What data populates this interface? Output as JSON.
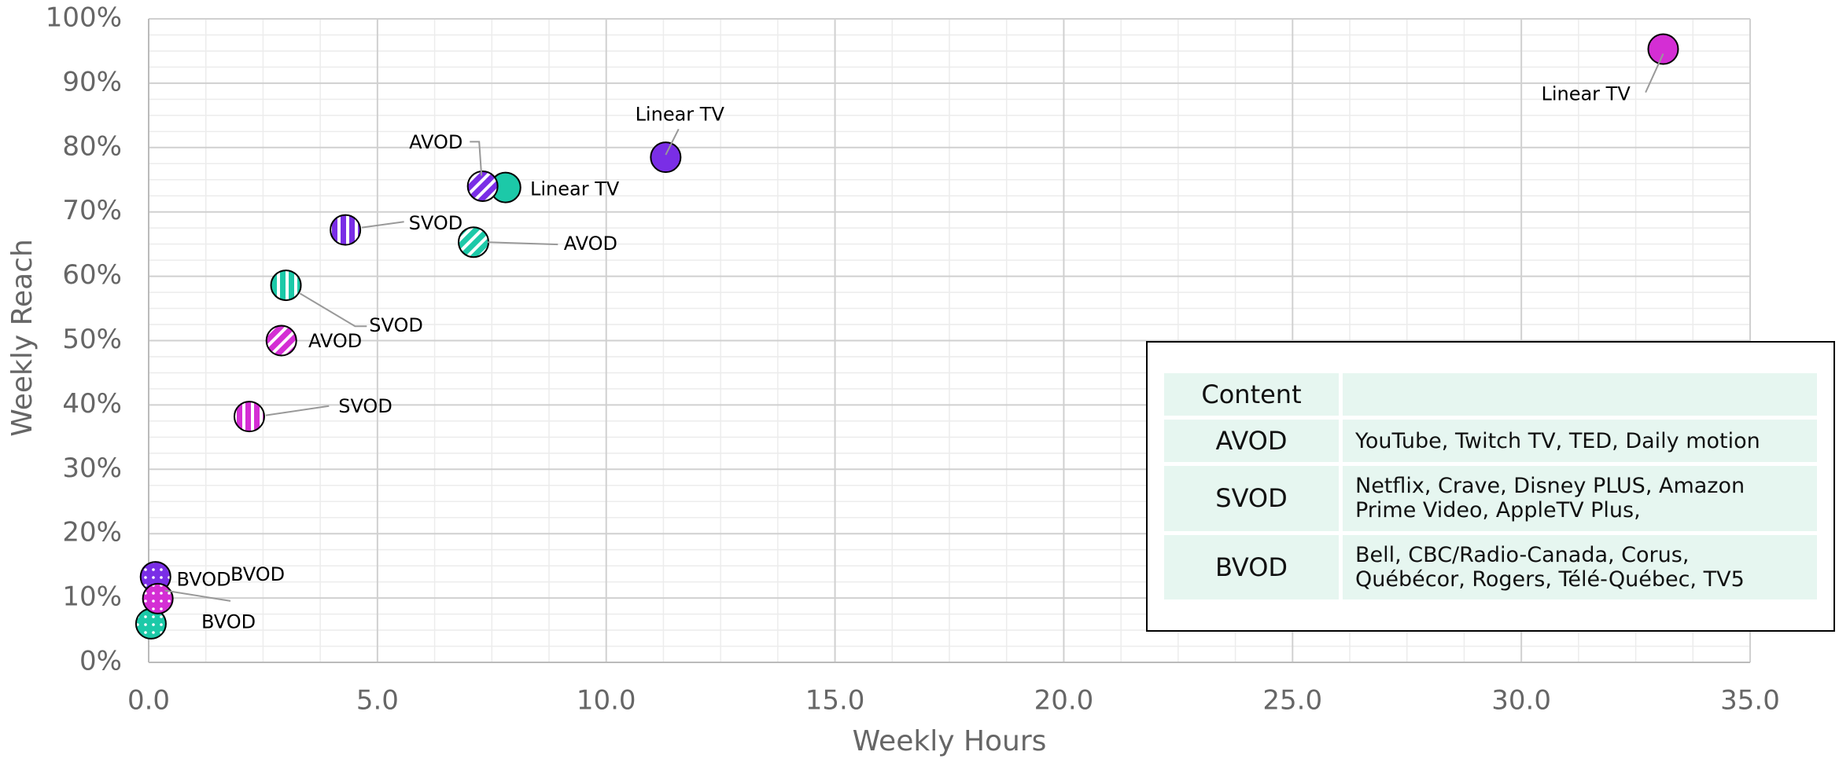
{
  "chart_data": {
    "type": "scatter",
    "xlabel": "Weekly Hours",
    "ylabel": "Weekly Reach",
    "xlim": [
      0,
      35
    ],
    "ylim": [
      0,
      100
    ],
    "xticks": [
      {
        "value": 0,
        "label": "0.0"
      },
      {
        "value": 5,
        "label": "5.0"
      },
      {
        "value": 10,
        "label": "10.0"
      },
      {
        "value": 15,
        "label": "15.0"
      },
      {
        "value": 20,
        "label": "20.0"
      },
      {
        "value": 25,
        "label": "25.0"
      },
      {
        "value": 30,
        "label": "30.0"
      },
      {
        "value": 35,
        "label": "35.0"
      }
    ],
    "yticks": [
      {
        "value": 0,
        "label": "0%"
      },
      {
        "value": 10,
        "label": "10%"
      },
      {
        "value": 20,
        "label": "20%"
      },
      {
        "value": 30,
        "label": "30%"
      },
      {
        "value": 40,
        "label": "40%"
      },
      {
        "value": 50,
        "label": "50%"
      },
      {
        "value": 60,
        "label": "60%"
      },
      {
        "value": 70,
        "label": "70%"
      },
      {
        "value": 80,
        "label": "80%"
      },
      {
        "value": 90,
        "label": "90%"
      },
      {
        "value": 100,
        "label": "100%"
      }
    ],
    "grid": true,
    "minor_divisions": 4,
    "series": [
      {
        "name": "Linear TV",
        "pattern": "solid",
        "x": [
          11.3,
          7.8,
          33.1
        ],
        "values": [
          78.5,
          73.8,
          95.3
        ],
        "colors": [
          "#7a2ee6",
          "#1cc9a8",
          "#d42ed4"
        ]
      },
      {
        "name": "AVOD",
        "pattern": "diagonal",
        "x": [
          7.3,
          7.1,
          2.9
        ],
        "values": [
          74,
          65.3,
          50
        ],
        "colors": [
          "#7a2ee6",
          "#1cc9a8",
          "#d42ed4"
        ]
      },
      {
        "name": "SVOD",
        "pattern": "vertical",
        "x": [
          4.3,
          3.0,
          2.2
        ],
        "values": [
          67.2,
          58.6,
          38.2
        ],
        "colors": [
          "#7a2ee6",
          "#1cc9a8",
          "#d42ed4"
        ]
      },
      {
        "name": "BVOD",
        "pattern": "dots",
        "x": [
          0.15,
          0.05,
          0.2
        ],
        "values": [
          13.3,
          6,
          9.9
        ],
        "colors": [
          "#7a2ee6",
          "#1cc9a8",
          "#d42ed4"
        ]
      }
    ]
  },
  "table": {
    "header": [
      "Content"
    ],
    "rows": [
      [
        "AVOD",
        "YouTube, Twitch TV, TED, Daily motion"
      ],
      [
        "SVOD",
        "Netflix, Crave, Disney PLUS, Amazon Prime Video, AppleTV Plus,"
      ],
      [
        "BVOD",
        "Bell, CBC/Radio-Canada, Corus, Québécor, Rogers, Télé-Québec, TV5"
      ]
    ]
  }
}
